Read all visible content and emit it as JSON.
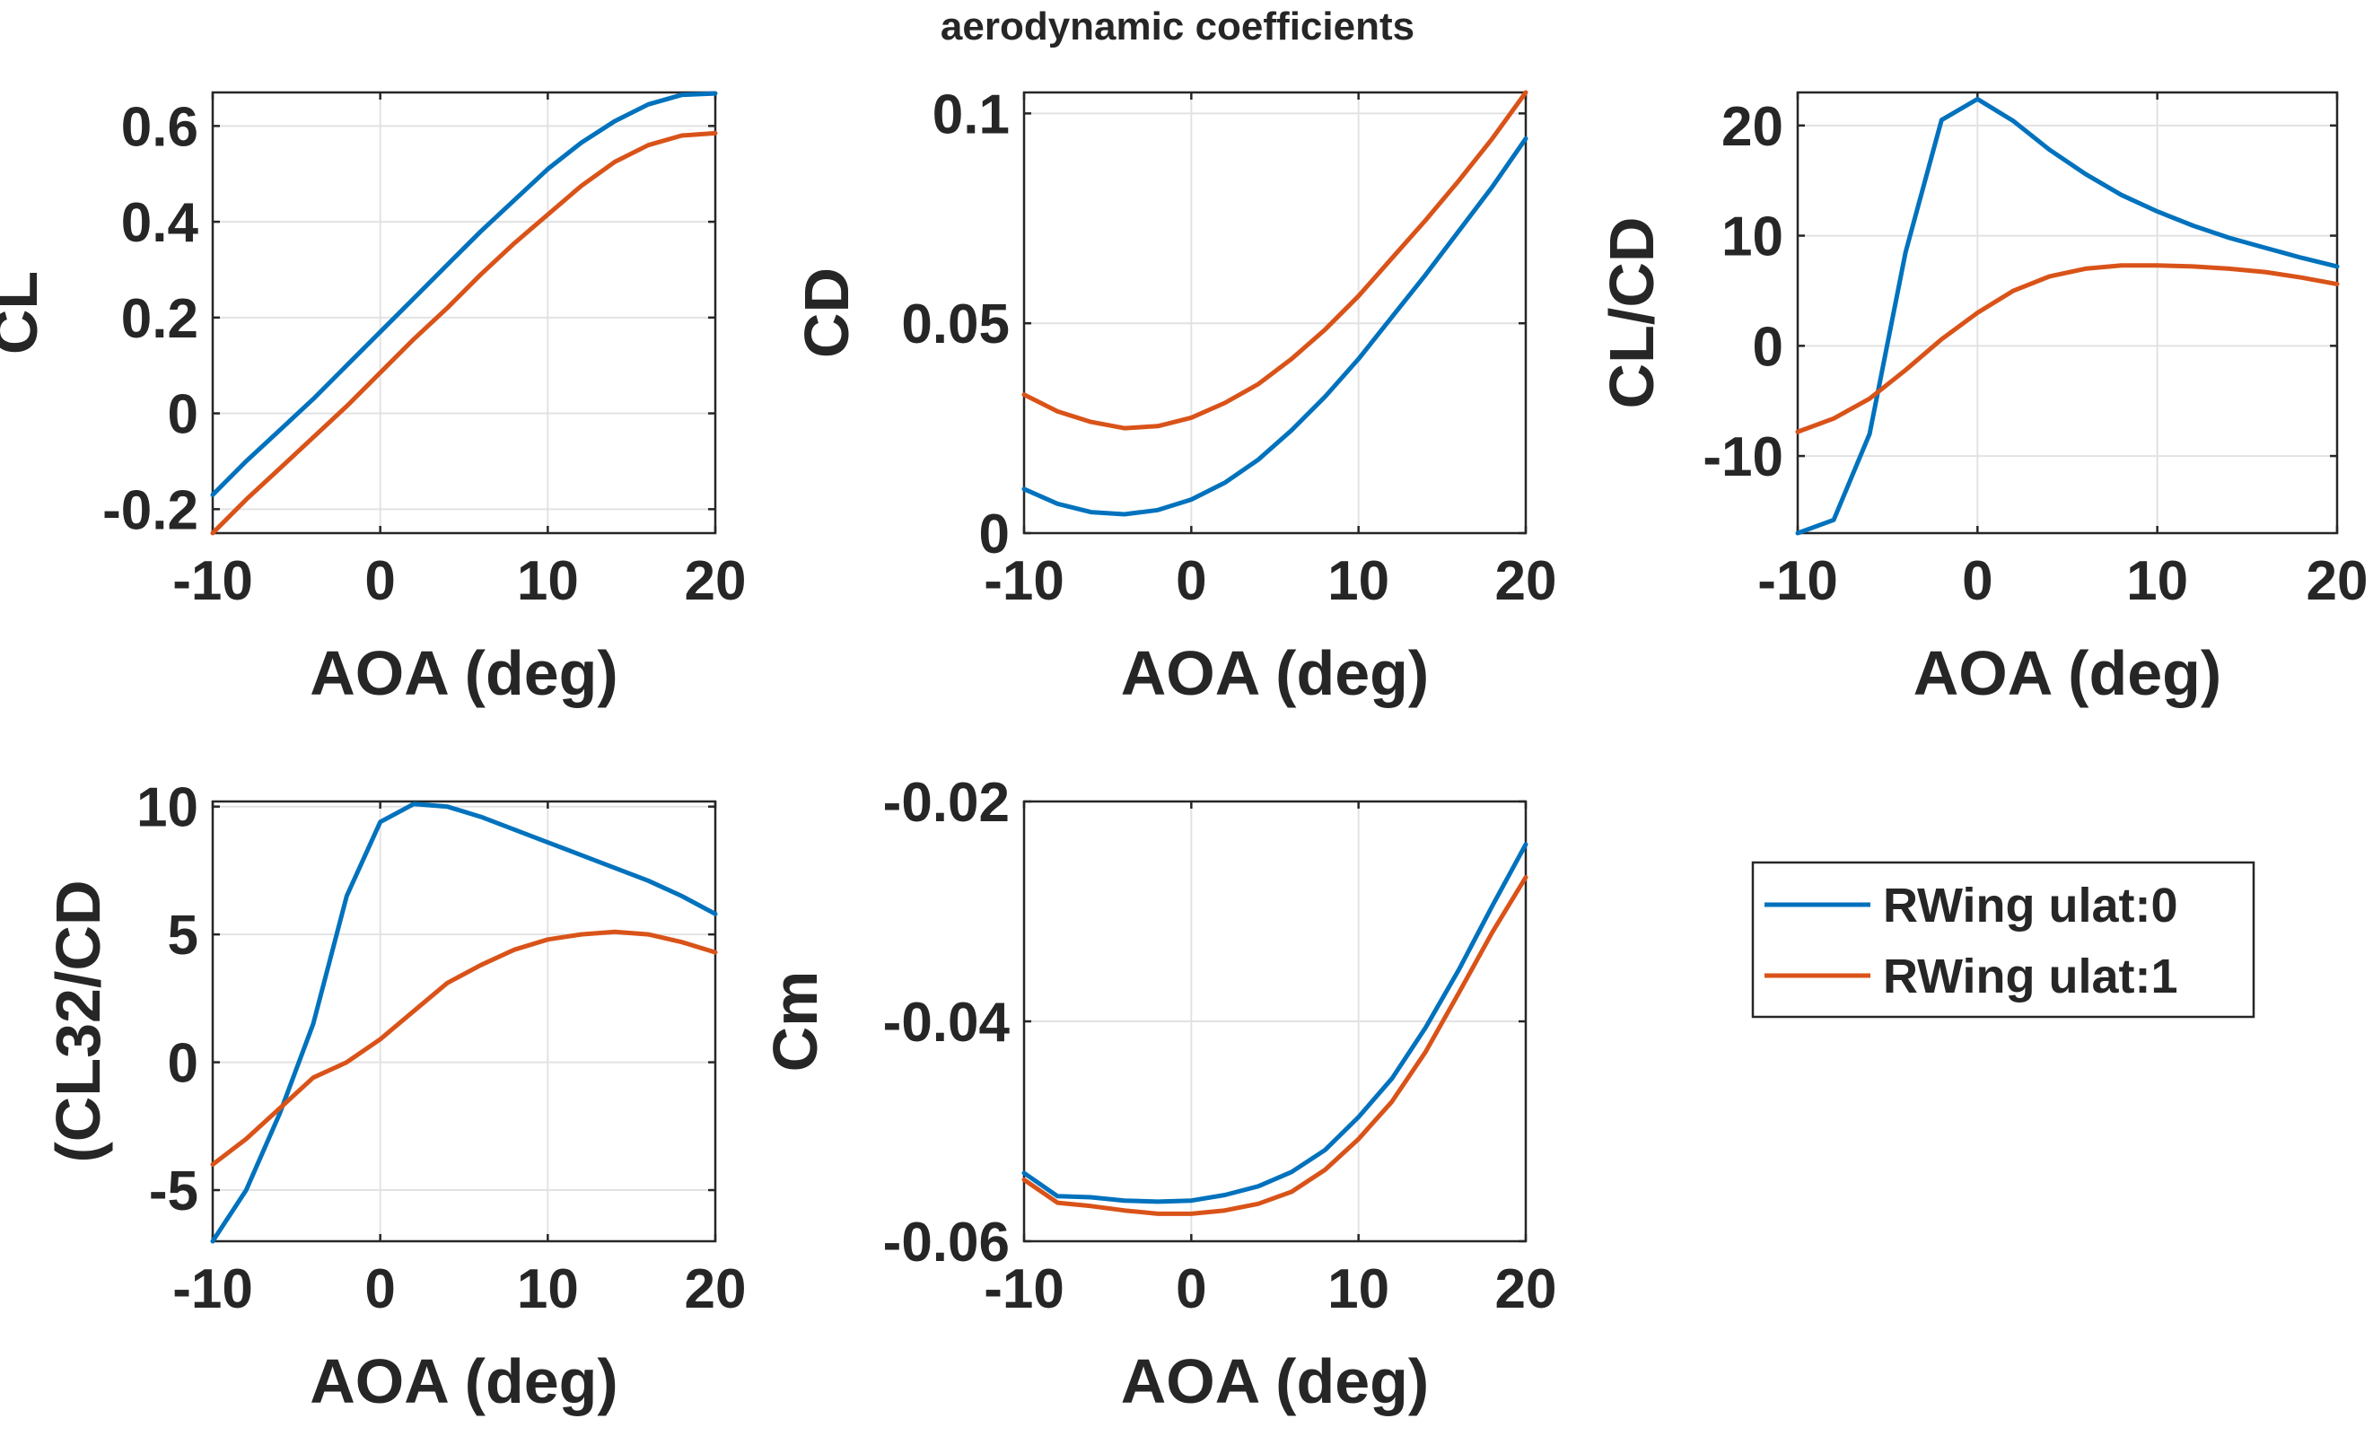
{
  "figure": {
    "title": "aerodynamic coefficients",
    "legend": {
      "placement": "right",
      "entries": [
        {
          "label": "RWing ulat:0",
          "color": "#0072BD"
        },
        {
          "label": "RWing ulat:1",
          "color": "#D95319"
        }
      ]
    }
  },
  "chart_data": [
    {
      "type": "line",
      "xlabel": "AOA (deg)",
      "ylabel": "CL",
      "xlim": [
        -10,
        20
      ],
      "ylim": [
        -0.25,
        0.67
      ],
      "xticks": [
        -10,
        0,
        10,
        20
      ],
      "yticks": [
        -0.2,
        0,
        0.2,
        0.4,
        0.6
      ],
      "ytick_labels": [
        "-0.2",
        "0",
        "0.2",
        "0.4",
        "0.6"
      ],
      "grid": true,
      "x": [
        -10,
        -8,
        -6,
        -4,
        -2,
        0,
        2,
        4,
        6,
        8,
        10,
        12,
        14,
        16,
        18,
        20
      ],
      "series": [
        {
          "values": [
            -0.17,
            -0.1,
            -0.035,
            0.03,
            0.1,
            0.17,
            0.24,
            0.31,
            0.38,
            0.445,
            0.51,
            0.565,
            0.61,
            0.645,
            0.665,
            0.668
          ],
          "color": "#0072BD"
        },
        {
          "values": [
            -0.25,
            -0.18,
            -0.115,
            -0.05,
            0.015,
            0.085,
            0.155,
            0.22,
            0.29,
            0.355,
            0.415,
            0.475,
            0.525,
            0.56,
            0.58,
            0.585
          ],
          "color": "#D95319"
        }
      ]
    },
    {
      "type": "line",
      "xlabel": "AOA (deg)",
      "ylabel": "CD",
      "xlim": [
        -10,
        20
      ],
      "ylim": [
        0,
        0.105
      ],
      "xticks": [
        -10,
        0,
        10,
        20
      ],
      "yticks": [
        0,
        0.05,
        0.1
      ],
      "ytick_labels": [
        "0",
        "0.05",
        "0.1"
      ],
      "grid": true,
      "x": [
        -10,
        -8,
        -6,
        -4,
        -2,
        0,
        2,
        4,
        6,
        8,
        10,
        12,
        14,
        16,
        18,
        20
      ],
      "series": [
        {
          "values": [
            0.0105,
            0.007,
            0.005,
            0.0045,
            0.0055,
            0.008,
            0.012,
            0.0175,
            0.0245,
            0.0325,
            0.0415,
            0.0515,
            0.0615,
            0.072,
            0.0825,
            0.094
          ],
          "color": "#0072BD"
        },
        {
          "values": [
            0.033,
            0.029,
            0.0265,
            0.025,
            0.0255,
            0.0275,
            0.031,
            0.0355,
            0.0415,
            0.0485,
            0.0565,
            0.0655,
            0.0745,
            0.084,
            0.094,
            0.105
          ],
          "color": "#D95319"
        }
      ]
    },
    {
      "type": "line",
      "xlabel": "AOA (deg)",
      "ylabel": "CL/CD",
      "xlim": [
        -10,
        20
      ],
      "ylim": [
        -17,
        23
      ],
      "xticks": [
        -10,
        0,
        10,
        20
      ],
      "yticks": [
        -10,
        0,
        10,
        20
      ],
      "ytick_labels": [
        "-10",
        "0",
        "10",
        "20"
      ],
      "grid": true,
      "x": [
        -10,
        -8,
        -6,
        -4,
        -2,
        0,
        2,
        4,
        6,
        8,
        10,
        12,
        14,
        16,
        18,
        20
      ],
      "series": [
        {
          "values": [
            -17,
            -15.8,
            -8,
            8.5,
            20.5,
            22.4,
            20.4,
            17.8,
            15.6,
            13.7,
            12.2,
            10.9,
            9.8,
            8.9,
            8,
            7.2
          ],
          "color": "#0072BD"
        },
        {
          "values": [
            -7.8,
            -6.6,
            -4.8,
            -2.2,
            0.6,
            3,
            5,
            6.3,
            7,
            7.3,
            7.3,
            7.2,
            7,
            6.7,
            6.2,
            5.6
          ],
          "color": "#D95319"
        }
      ]
    },
    {
      "type": "line",
      "xlabel": "AOA (deg)",
      "ylabel": "(CL32/CD",
      "xlim": [
        -10,
        20
      ],
      "ylim": [
        -7,
        10.2
      ],
      "xticks": [
        -10,
        0,
        10,
        20
      ],
      "yticks": [
        -5,
        0,
        5,
        10
      ],
      "ytick_labels": [
        "-5",
        "0",
        "5",
        "10"
      ],
      "grid": true,
      "x": [
        -10,
        -8,
        -6,
        -4,
        -2,
        0,
        2,
        4,
        6,
        8,
        10,
        12,
        14,
        16,
        18,
        20
      ],
      "series": [
        {
          "values": [
            -7,
            -5,
            -2,
            1.5,
            6.5,
            9.4,
            10.1,
            10,
            9.6,
            9.1,
            8.6,
            8.1,
            7.6,
            7.1,
            6.5,
            5.8
          ],
          "color": "#0072BD"
        },
        {
          "values": [
            -4,
            -3,
            -1.8,
            -0.6,
            0,
            0.9,
            2,
            3.1,
            3.8,
            4.4,
            4.8,
            5,
            5.1,
            5,
            4.7,
            4.3
          ],
          "color": "#D95319"
        }
      ]
    },
    {
      "type": "line",
      "xlabel": "AOA (deg)",
      "ylabel": "Cm",
      "xlim": [
        -10,
        20
      ],
      "ylim": [
        -0.06,
        -0.02
      ],
      "xticks": [
        -10,
        0,
        10,
        20
      ],
      "yticks": [
        -0.06,
        -0.04,
        -0.02
      ],
      "ytick_labels": [
        "-0.06",
        "-0.04",
        "-0.02"
      ],
      "grid": true,
      "x": [
        -10,
        -8,
        -6,
        -4,
        -2,
        0,
        2,
        4,
        6,
        8,
        10,
        12,
        14,
        16,
        18,
        20
      ],
      "series": [
        {
          "values": [
            -0.0538,
            -0.0559,
            -0.056,
            -0.0563,
            -0.0564,
            -0.0563,
            -0.0558,
            -0.055,
            -0.0537,
            -0.0517,
            -0.0487,
            -0.0452,
            -0.0406,
            -0.0353,
            -0.0295,
            -0.0239
          ],
          "color": "#0072BD"
        },
        {
          "values": [
            -0.0544,
            -0.0565,
            -0.0568,
            -0.0572,
            -0.0575,
            -0.0575,
            -0.0572,
            -0.0566,
            -0.0555,
            -0.0535,
            -0.0507,
            -0.0473,
            -0.0428,
            -0.0374,
            -0.0319,
            -0.0269
          ],
          "color": "#D95319"
        }
      ]
    }
  ]
}
